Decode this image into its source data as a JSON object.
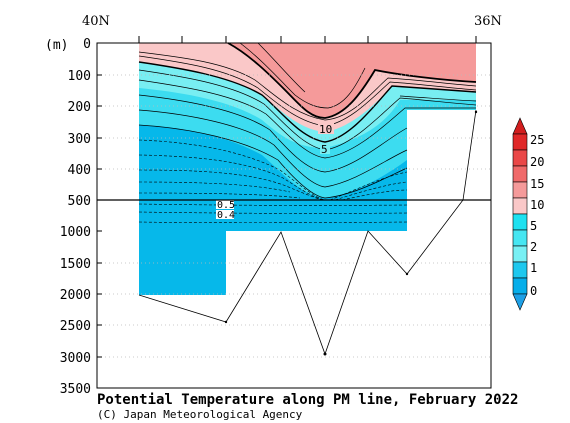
{
  "chart_data": {
    "type": "contour-section",
    "title": "Potential Temperature along PM line, February 2022",
    "credit": "(C) Japan Meteorological Agency",
    "ylabel": "(m)",
    "x_start_label": "40N",
    "x_end_label": "36N",
    "y_ticks_upper": [
      0,
      100,
      200,
      300,
      400,
      500
    ],
    "y_ticks_lower": [
      1000,
      1500,
      2000,
      2500,
      3000,
      3500
    ],
    "ylim_upper": [
      0,
      500
    ],
    "ylim_lower": [
      500,
      3500
    ],
    "contour_labels": [
      "10",
      "5",
      "0.5",
      "0.4"
    ],
    "colorbar": {
      "levels": [
        "25",
        "20",
        "15",
        "10",
        "5",
        "2",
        "1",
        "0"
      ],
      "colors": [
        "#d21e1e",
        "#e83a3a",
        "#f06262",
        "#f59696",
        "#fac8c8",
        "#3cd2dc",
        "#3ce6f0",
        "#78f0f0",
        "#06aeea",
        "#1ea0e6"
      ]
    },
    "bathymetry_depths": [
      2020,
      2460,
      1020,
      2960,
      1010,
      1680,
      490,
      180
    ],
    "station_count": 8
  }
}
